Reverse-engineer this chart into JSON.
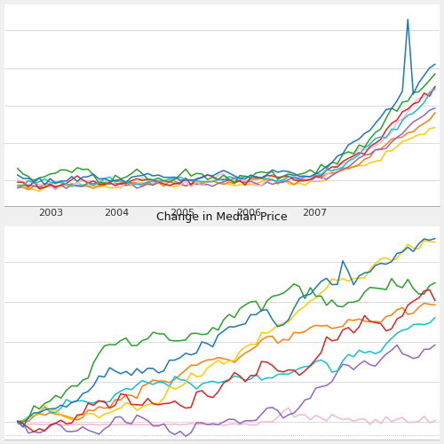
{
  "title_middle": "Change in Median Price",
  "x_ticks": [
    2003,
    2004,
    2005,
    2006,
    2007
  ],
  "colors": [
    "#1f77b4",
    "#ff7f0e",
    "#d62728",
    "#2ca02c",
    "#ffcc00",
    "#17becf",
    "#9467bd",
    "#f7b6d2"
  ],
  "bg_color": "#f0f0f0",
  "plot_bg": "#ffffff",
  "label_bg": "#d8d8d8",
  "label_color": "#111111",
  "label_fontsize": 9
}
